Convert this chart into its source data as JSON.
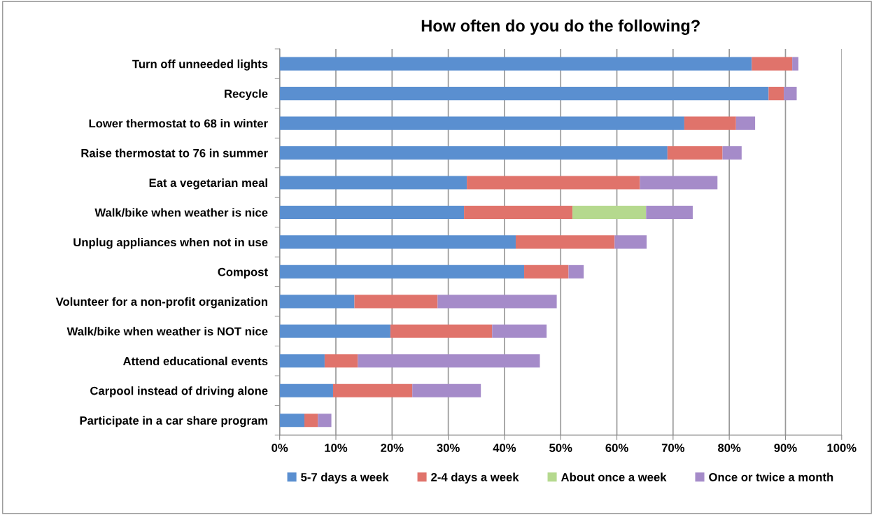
{
  "chart_data": {
    "type": "bar",
    "orientation": "horizontal",
    "stacked": true,
    "title": "How often do you do the following?",
    "categories": [
      "Turn off unneeded lights",
      "Recycle",
      "Lower thermostat to 68 in winter",
      "Raise thermostat to 76 in summer",
      "Eat a vegetarian meal",
      "Walk/bike when weather is nice",
      "Unplug appliances when not in use",
      "Compost",
      "Volunteer for a non-profit organization",
      "Walk/bike when weather is NOT nice",
      "Attend educational events",
      "Carpool instead of driving alone",
      "Participate in a car share program"
    ],
    "series": [
      {
        "name": "5-7 days a week",
        "color": "#5a8fd0",
        "values": [
          84,
          87,
          72,
          69,
          33.3,
          32.8,
          42,
          43.5,
          13.3,
          19.7,
          8,
          9.5,
          4.4
        ]
      },
      {
        "name": "2-4 days a week",
        "color": "#e0736b",
        "values": [
          7.2,
          2.7,
          9.2,
          9.8,
          30.8,
          19.3,
          17.6,
          7.9,
          14.8,
          18.1,
          5.9,
          14.1,
          2.4
        ]
      },
      {
        "name": "About once a week",
        "color": "#b5d98e",
        "values": [
          null,
          null,
          null,
          null,
          null,
          13.1,
          null,
          null,
          null,
          null,
          null,
          null,
          null
        ]
      },
      {
        "name": "Once or twice a month",
        "color": "#a58bc9",
        "values": [
          1.1,
          2.3,
          3.4,
          3.4,
          13.8,
          8.3,
          5.7,
          2.7,
          21.2,
          9.7,
          32.4,
          12.2,
          2.4
        ]
      }
    ],
    "xlim": [
      0,
      100
    ],
    "xticks": [
      {
        "value": 0,
        "label": "0%"
      },
      {
        "value": 10,
        "label": "10%"
      },
      {
        "value": 20,
        "label": "20%"
      },
      {
        "value": 30,
        "label": "30%"
      },
      {
        "value": 40,
        "label": "40%"
      },
      {
        "value": 50,
        "label": "50%"
      },
      {
        "value": 60,
        "label": "60%"
      },
      {
        "value": 70,
        "label": "70%"
      },
      {
        "value": 80,
        "label": "80%"
      },
      {
        "value": 90,
        "label": "90%"
      },
      {
        "value": 100,
        "label": "100%"
      }
    ],
    "grid": "x",
    "legend": "bottom"
  }
}
